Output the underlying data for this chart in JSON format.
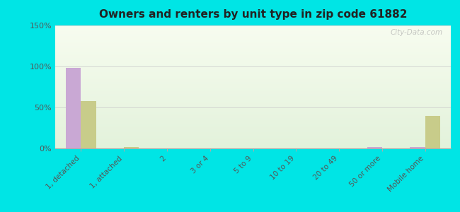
{
  "title": "Owners and renters by unit type in zip code 61882",
  "categories": [
    "1, detached",
    "1, attached",
    "2",
    "3 or 4",
    "5 to 9",
    "10 to 19",
    "20 to 49",
    "50 or more",
    "Mobile home"
  ],
  "owner_values": [
    98,
    0,
    0,
    0,
    0,
    0,
    0,
    2,
    2
  ],
  "renter_values": [
    58,
    2,
    0,
    0,
    0,
    0,
    0,
    0,
    40
  ],
  "owner_color": "#c9a8d4",
  "renter_color": "#c8cc8a",
  "background_color": "#00e5e5",
  "ylim": [
    0,
    150
  ],
  "yticks": [
    0,
    50,
    100,
    150
  ],
  "ytick_labels": [
    "0%",
    "50%",
    "100%",
    "150%"
  ],
  "bar_width": 0.35,
  "watermark": "City-Data.com"
}
